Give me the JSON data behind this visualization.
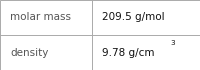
{
  "rows": [
    {
      "label": "molar mass",
      "value": "209.5 g/mol",
      "superscript": null
    },
    {
      "label": "density",
      "value": "9.78 g/cm",
      "superscript": "3"
    }
  ],
  "background_color": "#ffffff",
  "border_color": "#aaaaaa",
  "label_color": "#555555",
  "value_color": "#111111",
  "font_size": 7.5,
  "col_split": 0.46
}
